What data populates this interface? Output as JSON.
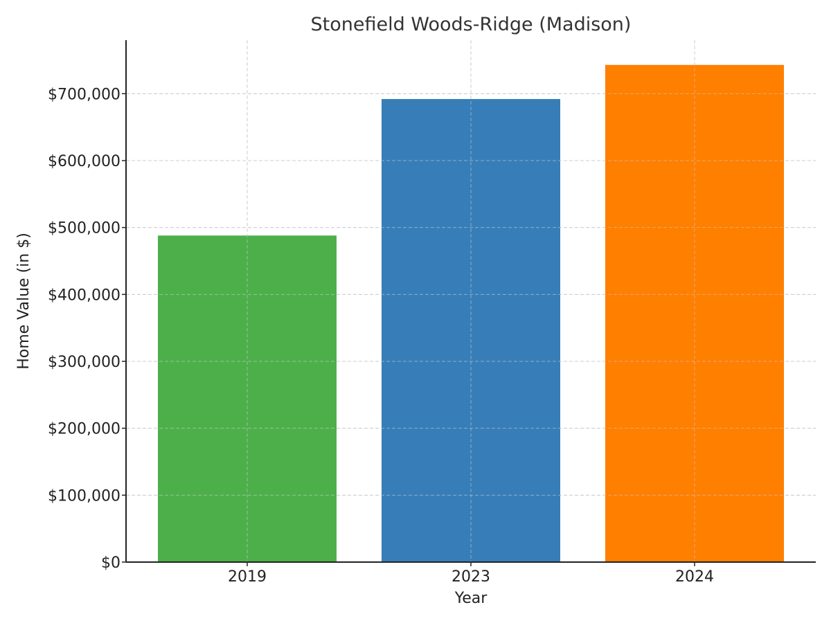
{
  "chart_data": {
    "type": "bar",
    "title": "Stonefield Woods-Ridge (Madison)",
    "xlabel": "Year",
    "ylabel": "Home Value (in $)",
    "categories": [
      "2019",
      "2023",
      "2024"
    ],
    "values": [
      488000,
      692000,
      743000
    ],
    "colors": [
      "#4daf4a",
      "#377eb8",
      "#ff7f00"
    ],
    "ylim": [
      0,
      780000
    ],
    "yticks": [
      0,
      100000,
      200000,
      300000,
      400000,
      500000,
      600000,
      700000
    ],
    "ytick_labels": [
      "$0",
      "$100,000",
      "$200,000",
      "$300,000",
      "$400,000",
      "$500,000",
      "$600,000",
      "$700,000"
    ],
    "grid": true,
    "legend": "none"
  }
}
